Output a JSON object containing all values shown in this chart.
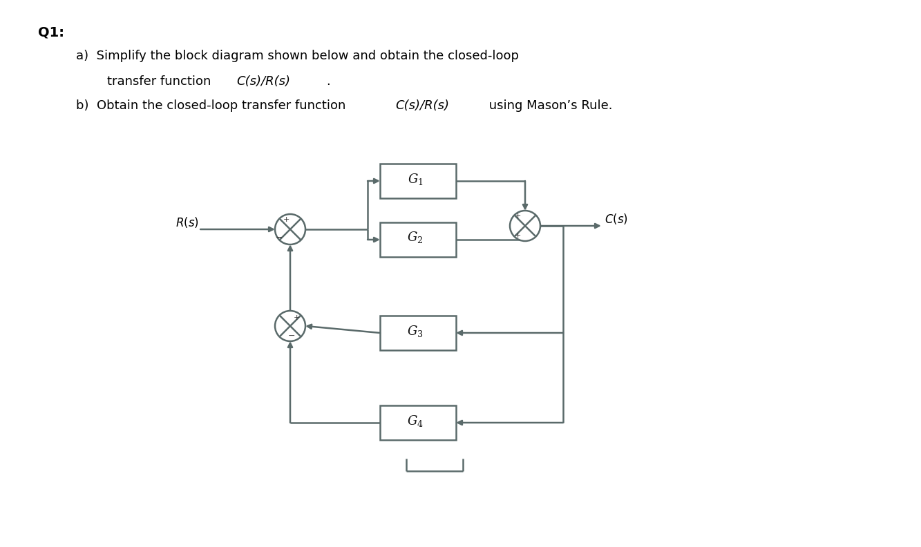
{
  "title_q": "Q1:",
  "bg_color": "#ffffff",
  "line_color": "#5a6a6a",
  "text_color": "#000000",
  "input_label": "R(s)",
  "output_label": "C(s)",
  "sj1": [
    4.2,
    4.6
  ],
  "sj2": [
    7.6,
    4.65
  ],
  "sj3": [
    4.2,
    3.2
  ],
  "r_sj": 0.22,
  "g1": [
    5.5,
    5.05,
    1.1,
    0.5
  ],
  "g2": [
    5.5,
    4.2,
    1.1,
    0.5
  ],
  "g3": [
    5.5,
    2.85,
    1.1,
    0.5
  ],
  "g4": [
    5.5,
    1.55,
    1.1,
    0.5
  ],
  "block_labels": [
    "G1",
    "G2",
    "G3",
    "G4"
  ],
  "lw": 1.8
}
